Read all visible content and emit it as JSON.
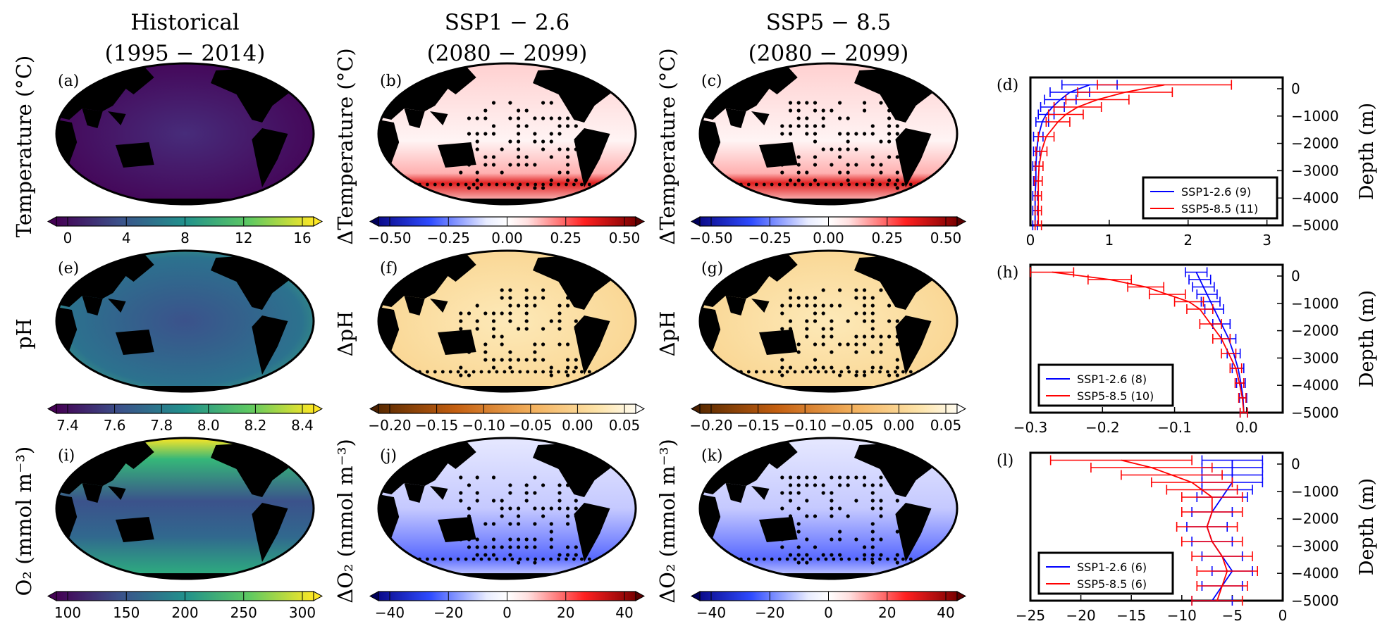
{
  "columns": [
    {
      "title1": "Historical",
      "title2": "(1995 − 2014)"
    },
    {
      "title1": "SSP1 − 2.6",
      "title2": "(2080 − 2099)"
    },
    {
      "title1": "SSP5 − 8.5",
      "title2": "(2080 − 2099)"
    }
  ],
  "rows": [
    {
      "labels": [
        "(a)",
        "(b)",
        "(c)",
        "(d)"
      ],
      "ylabel_hist": "Temperature (°C)",
      "ylabel_delta": "ΔTemperature (°C)",
      "hist_scale": {
        "ticks": [
          "0",
          "4",
          "8",
          "12",
          "16"
        ],
        "colormap": "viridis"
      },
      "delta_scale": {
        "ticks": [
          "−0.50",
          "−0.25",
          "0.00",
          "0.25",
          "0.50"
        ],
        "colormap": "bwr"
      },
      "profile": {
        "xlim": [
          0,
          3.2
        ],
        "xticks": [
          "0",
          "1",
          "2",
          "3"
        ],
        "legend_position": "lower-right"
      }
    },
    {
      "labels": [
        "(e)",
        "(f)",
        "(g)",
        "(h)"
      ],
      "ylabel_hist": "pH",
      "ylabel_delta": "ΔpH",
      "hist_scale": {
        "ticks": [
          "7.4",
          "7.6",
          "7.8",
          "8.0",
          "8.2",
          "8.4"
        ],
        "colormap": "viridis"
      },
      "delta_scale": {
        "ticks": [
          "−0.20",
          "−0.15",
          "−0.10",
          "−0.05",
          "0.00",
          "0.05"
        ],
        "colormap": "oranges"
      },
      "profile": {
        "xlim": [
          -0.3,
          0.05
        ],
        "xticks": [
          "−0.3",
          "−0.2",
          "−0.1",
          "0.0"
        ],
        "legend_position": "lower-left"
      }
    },
    {
      "labels": [
        "(i)",
        "(j)",
        "(k)",
        "(l)"
      ],
      "ylabel_hist": "O₂ (mmol m⁻³)",
      "ylabel_delta": "ΔO₂ (mmol m⁻³)",
      "hist_scale": {
        "ticks": [
          "100",
          "150",
          "200",
          "250",
          "300"
        ],
        "colormap": "viridis"
      },
      "delta_scale": {
        "ticks": [
          "−40",
          "−20",
          "0",
          "20",
          "40"
        ],
        "colormap": "bwr"
      },
      "profile": {
        "xlim": [
          -25,
          0
        ],
        "xticks": [
          "−25",
          "−20",
          "−15",
          "−10",
          "−5",
          "0"
        ],
        "legend_position": "lower-left"
      }
    }
  ],
  "depth_axis": {
    "label": "Depth (m)",
    "ticks": [
      "0",
      "−1000",
      "−2000",
      "−3000",
      "−4000",
      "−5000"
    ]
  },
  "colors": {
    "ssp126": "#0000ff",
    "ssp585": "#ff0000",
    "land": "#000000"
  },
  "chart_data": [
    {
      "type": "line",
      "title": "(d)",
      "xlabel": "",
      "ylabel": "Depth (m)",
      "xlim": [
        0,
        3.2
      ],
      "ylim": [
        -5000,
        0
      ],
      "series": [
        {
          "name": "SSP1-2.6 (9)",
          "y": [
            -250,
            -500,
            -750,
            -1000,
            -1250,
            -1500,
            -2000,
            -2500,
            -3000,
            -3500,
            -4000,
            -4500,
            -5000
          ],
          "x": [
            0.75,
            0.5,
            0.38,
            0.28,
            0.2,
            0.15,
            0.1,
            0.08,
            0.07,
            0.07,
            0.06,
            0.06,
            0.06
          ],
          "err": [
            0.35,
            0.25,
            0.2,
            0.15,
            0.1,
            0.08,
            0.06,
            0.04,
            0.04,
            0.03,
            0.03,
            0.03,
            0.03
          ]
        },
        {
          "name": "SSP5-8.5 (11)",
          "y": [
            -250,
            -500,
            -750,
            -1000,
            -1250,
            -1500,
            -2000,
            -2500,
            -3000,
            -3500,
            -4000,
            -4500,
            -5000
          ],
          "x": [
            1.7,
            1.2,
            0.85,
            0.6,
            0.45,
            0.35,
            0.2,
            0.14,
            0.11,
            0.1,
            0.1,
            0.1,
            0.1
          ],
          "err": [
            0.85,
            0.6,
            0.4,
            0.3,
            0.22,
            0.15,
            0.1,
            0.07,
            0.05,
            0.05,
            0.04,
            0.04,
            0.04
          ]
        }
      ]
    },
    {
      "type": "line",
      "title": "(h)",
      "xlabel": "",
      "ylabel": "Depth (m)",
      "xlim": [
        -0.3,
        0.05
      ],
      "ylim": [
        -5000,
        0
      ],
      "series": [
        {
          "name": "SSP1-2.6 (8)",
          "y": [
            -250,
            -500,
            -750,
            -1000,
            -1250,
            -1500,
            -2000,
            -2500,
            -3000,
            -3500,
            -4000,
            -4500,
            -5000
          ],
          "x": [
            -0.07,
            -0.065,
            -0.06,
            -0.055,
            -0.05,
            -0.045,
            -0.035,
            -0.025,
            -0.018,
            -0.012,
            -0.008,
            -0.005,
            -0.004
          ],
          "err": [
            0.015,
            0.015,
            0.015,
            0.014,
            0.013,
            0.013,
            0.012,
            0.01,
            0.009,
            0.008,
            0.006,
            0.005,
            0.005
          ]
        },
        {
          "name": "SSP5-8.5 (10)",
          "y": [
            -250,
            -500,
            -750,
            -1000,
            -1250,
            -1500,
            -2000,
            -2500,
            -3000,
            -3500,
            -4000,
            -4500,
            -5000
          ],
          "x": [
            -0.27,
            -0.19,
            -0.14,
            -0.11,
            -0.08,
            -0.065,
            -0.05,
            -0.035,
            -0.025,
            -0.015,
            -0.01,
            -0.006,
            -0.004
          ],
          "err": [
            0.03,
            0.03,
            0.025,
            0.025,
            0.02,
            0.018,
            0.015,
            0.012,
            0.01,
            0.008,
            0.006,
            0.005,
            0.005
          ]
        }
      ]
    },
    {
      "type": "line",
      "title": "(l)",
      "xlabel": "",
      "ylabel": "Depth (m)",
      "xlim": [
        -25,
        0
      ],
      "ylim": [
        -5000,
        0
      ],
      "series": [
        {
          "name": "SSP1-2.6 (6)",
          "y": [
            -250,
            -500,
            -750,
            -1000,
            -1250,
            -1500,
            -2000,
            -2500,
            -3000,
            -3500,
            -4000,
            -4500,
            -5000
          ],
          "x": [
            -5,
            -5,
            -5,
            -5,
            -5.5,
            -6,
            -7,
            -7.5,
            -7,
            -6,
            -5,
            -6,
            -7
          ],
          "err": [
            3,
            3,
            3,
            3,
            2.5,
            2.5,
            2,
            2,
            2,
            2,
            2,
            2,
            2
          ]
        },
        {
          "name": "SSP5-8.5 (6)",
          "y": [
            -250,
            -500,
            -750,
            -1000,
            -1250,
            -1500,
            -2000,
            -2500,
            -3000,
            -3500,
            -4000,
            -4500,
            -5000
          ],
          "x": [
            -16,
            -13,
            -11,
            -9,
            -8,
            -7,
            -7,
            -7.5,
            -7,
            -6,
            -5.5,
            -6,
            -6.5
          ],
          "err": [
            7,
            6,
            5,
            4,
            3.5,
            3,
            3,
            3,
            3,
            3,
            3,
            2.5,
            2.5
          ]
        }
      ]
    }
  ]
}
